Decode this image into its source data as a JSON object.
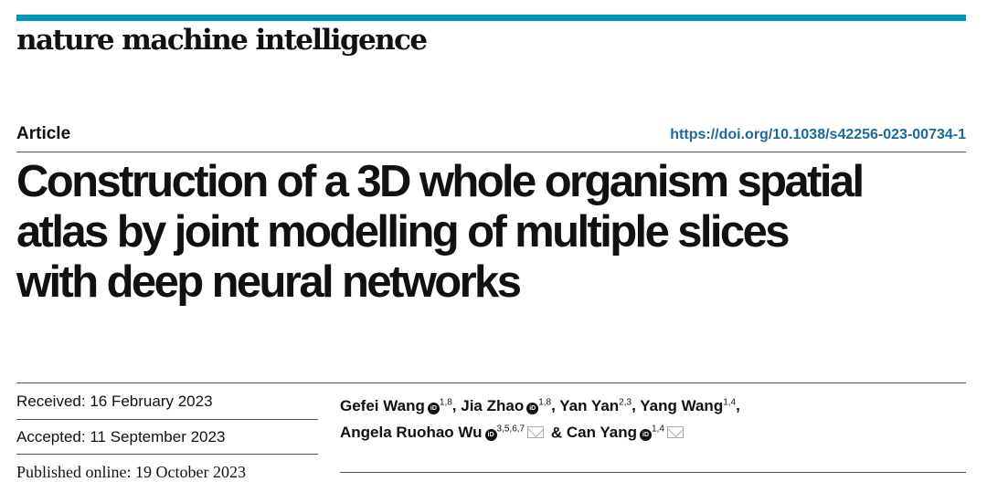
{
  "header": {
    "journal": "nature machine intelligence",
    "accent_color": "#0098b8"
  },
  "article": {
    "type": "Article",
    "doi": "https://doi.org/10.1038/s42256-023-00734-1",
    "title_lines": [
      "Construction of a 3D whole organism spatial",
      "atlas by joint modelling of multiple slices",
      "with deep neural networks"
    ]
  },
  "dates": {
    "received": "Received: 16 February 2023",
    "accepted": "Accepted: 11 September 2023",
    "published": "Published online: 19 October 2023"
  },
  "authors": [
    {
      "name": "Gefei Wang",
      "orcid": true,
      "affil": "1,8",
      "sep": ", "
    },
    {
      "name": "Jia Zhao",
      "orcid": true,
      "affil": "1,8",
      "sep": ", "
    },
    {
      "name": "Yan Yan",
      "orcid": false,
      "affil": "2,3",
      "sep": ", "
    },
    {
      "name": "Yang Wang",
      "orcid": false,
      "affil": "1,4",
      "sep": ","
    },
    {
      "name": "Angela Ruohao Wu",
      "orcid": true,
      "affil": "3,5,6,7",
      "sep": " & "
    },
    {
      "name": "Can Yang",
      "orcid": true,
      "affil": "1,4",
      "sep": ""
    }
  ],
  "icons": {
    "orcid": "orcid-icon",
    "mail": "envelope-icon"
  }
}
